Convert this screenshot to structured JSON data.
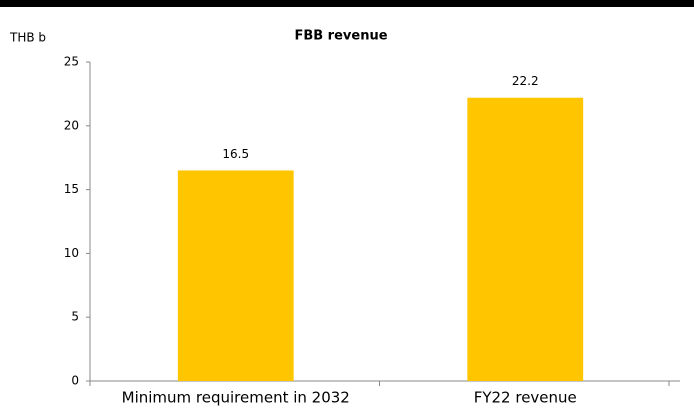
{
  "chart_data": {
    "type": "bar",
    "title": "FBB revenue",
    "y_label": "THB b",
    "categories": [
      "Minimum requirement in 2032",
      "FY22 revenue"
    ],
    "values": [
      16.5,
      22.2
    ],
    "color": "#ffc600",
    "ylim": [
      0,
      25
    ],
    "yticks": [
      0,
      5,
      10,
      15,
      20,
      25
    ],
    "grid": false
  }
}
